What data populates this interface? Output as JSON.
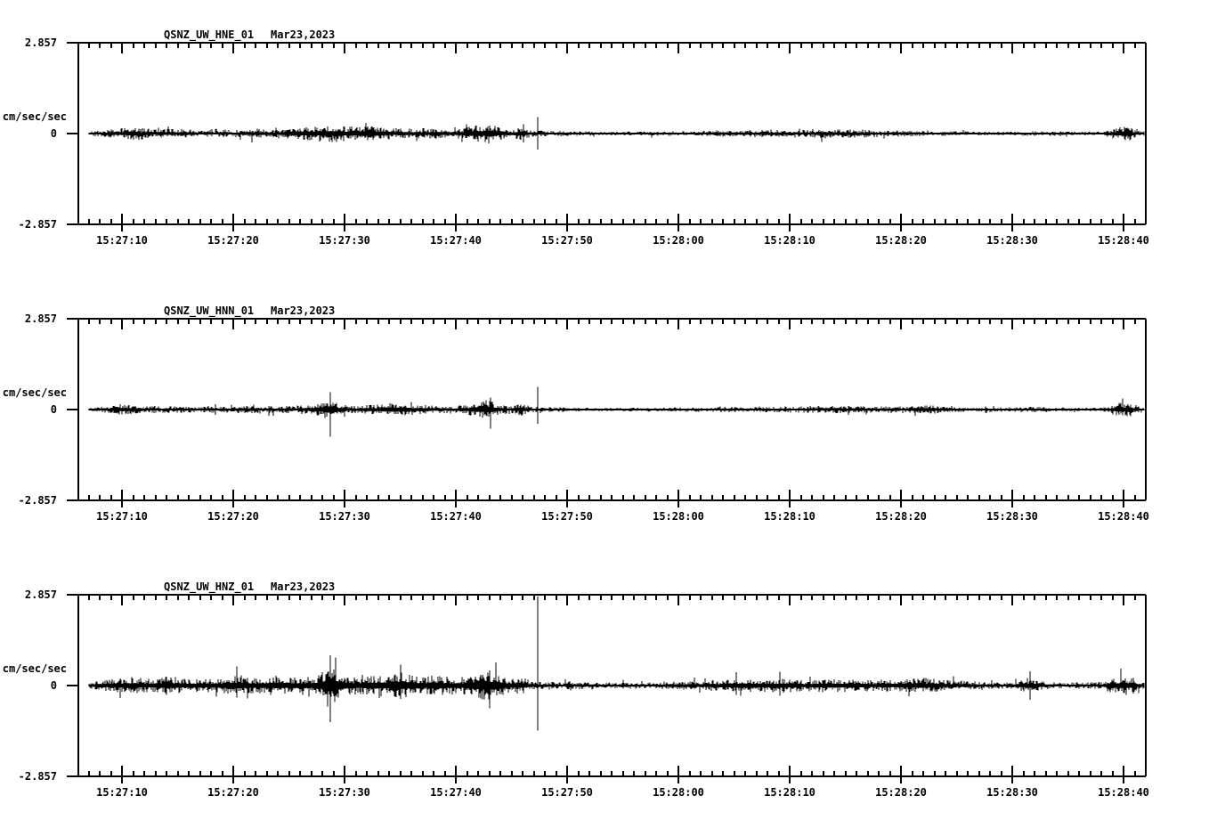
{
  "page": {
    "background": "#ffffff",
    "ink": "#000000"
  },
  "chart_data": [
    {
      "type": "seismogram",
      "station_id": "QSNZ_UW_HNE_01",
      "date": "Mar23,2023",
      "units": "cm/sec/sec",
      "y_axis": {
        "max_label": "2.857",
        "zero_label": "0",
        "min_label": "-2.857",
        "ylim": [
          -2.857,
          2.857
        ]
      },
      "x_ticks": [
        "15:27:10",
        "15:27:20",
        "15:27:30",
        "15:27:40",
        "15:27:50",
        "15:28:00",
        "15:28:10",
        "15:28:20",
        "15:28:30",
        "15:28:40"
      ],
      "time_window": {
        "start": "15:27:06",
        "end": "15:28:42",
        "minor_tick_interval_sec": 1,
        "major_tick_interval_sec": 10
      },
      "t_reference": "seconds after 15:27:00",
      "amplitude_envelope": [
        [
          7,
          0.05
        ],
        [
          8,
          0.1
        ],
        [
          10,
          0.16
        ],
        [
          11,
          0.22
        ],
        [
          12,
          0.18
        ],
        [
          13,
          0.13
        ],
        [
          14,
          0.16
        ],
        [
          15,
          0.13
        ],
        [
          16,
          0.15
        ],
        [
          17,
          0.11
        ],
        [
          18,
          0.1
        ],
        [
          19,
          0.13
        ],
        [
          20,
          0.11
        ],
        [
          21,
          0.14
        ],
        [
          22,
          0.17
        ],
        [
          23,
          0.12
        ],
        [
          24,
          0.14
        ],
        [
          25,
          0.17
        ],
        [
          26,
          0.2
        ],
        [
          27,
          0.22
        ],
        [
          28,
          0.25
        ],
        [
          29,
          0.28
        ],
        [
          30,
          0.24
        ],
        [
          31,
          0.22
        ],
        [
          32,
          0.24
        ],
        [
          33,
          0.2
        ],
        [
          34,
          0.18
        ],
        [
          35,
          0.17
        ],
        [
          36,
          0.15
        ],
        [
          37,
          0.18
        ],
        [
          38,
          0.16
        ],
        [
          39,
          0.14
        ],
        [
          40,
          0.15
        ],
        [
          41,
          0.2
        ],
        [
          42,
          0.28
        ],
        [
          43,
          0.32
        ],
        [
          44,
          0.2
        ],
        [
          45,
          0.13
        ],
        [
          46,
          0.24
        ],
        [
          46.6,
          0.12
        ],
        [
          47,
          0.1
        ],
        [
          48,
          0.1
        ],
        [
          49,
          0.08
        ],
        [
          50,
          0.08
        ],
        [
          52,
          0.07
        ],
        [
          54,
          0.06
        ],
        [
          56,
          0.06
        ],
        [
          58,
          0.07
        ],
        [
          60,
          0.07
        ],
        [
          62,
          0.08
        ],
        [
          64,
          0.1
        ],
        [
          66,
          0.11
        ],
        [
          68,
          0.11
        ],
        [
          70,
          0.13
        ],
        [
          71,
          0.12
        ],
        [
          72,
          0.13
        ],
        [
          73,
          0.15
        ],
        [
          74,
          0.16
        ],
        [
          75,
          0.14
        ],
        [
          76,
          0.13
        ],
        [
          77,
          0.14
        ],
        [
          78,
          0.12
        ],
        [
          79,
          0.12
        ],
        [
          80,
          0.1
        ],
        [
          82,
          0.08
        ],
        [
          84,
          0.07
        ],
        [
          86,
          0.07
        ],
        [
          88,
          0.06
        ],
        [
          90,
          0.06
        ],
        [
          92,
          0.07
        ],
        [
          94,
          0.07
        ],
        [
          96,
          0.06
        ],
        [
          98,
          0.06
        ],
        [
          98.8,
          0.13
        ],
        [
          99.5,
          0.22
        ],
        [
          100.5,
          0.24
        ],
        [
          101.3,
          0.12
        ],
        [
          102,
          0.06
        ]
      ],
      "peak_events": [
        {
          "t": 46.1,
          "max": 0.3,
          "min": -0.28
        },
        {
          "t": 47.35,
          "max": 0.52,
          "min": -0.5
        }
      ]
    },
    {
      "type": "seismogram",
      "station_id": "QSNZ_UW_HNN_01",
      "date": "Mar23,2023",
      "units": "cm/sec/sec",
      "y_axis": {
        "max_label": "2.857",
        "zero_label": "0",
        "min_label": "-2.857",
        "ylim": [
          -2.857,
          2.857
        ]
      },
      "x_ticks": [
        "15:27:10",
        "15:27:20",
        "15:27:30",
        "15:27:40",
        "15:27:50",
        "15:28:00",
        "15:28:10",
        "15:28:20",
        "15:28:30",
        "15:28:40"
      ],
      "time_window": {
        "start": "15:27:06",
        "end": "15:28:42",
        "minor_tick_interval_sec": 1,
        "major_tick_interval_sec": 10
      },
      "t_reference": "seconds after 15:27:00",
      "amplitude_envelope": [
        [
          7,
          0.05
        ],
        [
          8,
          0.09
        ],
        [
          9,
          0.14
        ],
        [
          10,
          0.18
        ],
        [
          11,
          0.14
        ],
        [
          12,
          0.11
        ],
        [
          13,
          0.12
        ],
        [
          14,
          0.1
        ],
        [
          15,
          0.12
        ],
        [
          16,
          0.1
        ],
        [
          17,
          0.09
        ],
        [
          18,
          0.1
        ],
        [
          19,
          0.12
        ],
        [
          20,
          0.1
        ],
        [
          21,
          0.12
        ],
        [
          22,
          0.14
        ],
        [
          23,
          0.12
        ],
        [
          24,
          0.11
        ],
        [
          25,
          0.12
        ],
        [
          26,
          0.14
        ],
        [
          27,
          0.16
        ],
        [
          28,
          0.22
        ],
        [
          28.7,
          0.4
        ],
        [
          29.4,
          0.2
        ],
        [
          30,
          0.14
        ],
        [
          31,
          0.13
        ],
        [
          32,
          0.15
        ],
        [
          33,
          0.18
        ],
        [
          34,
          0.2
        ],
        [
          35,
          0.24
        ],
        [
          36,
          0.18
        ],
        [
          37,
          0.14
        ],
        [
          38,
          0.13
        ],
        [
          39,
          0.12
        ],
        [
          40,
          0.13
        ],
        [
          41,
          0.16
        ],
        [
          42,
          0.24
        ],
        [
          43,
          0.3
        ],
        [
          44,
          0.16
        ],
        [
          45,
          0.12
        ],
        [
          46,
          0.2
        ],
        [
          46.6,
          0.11
        ],
        [
          47,
          0.09
        ],
        [
          48,
          0.09
        ],
        [
          50,
          0.07
        ],
        [
          52,
          0.06
        ],
        [
          54,
          0.06
        ],
        [
          56,
          0.06
        ],
        [
          58,
          0.06
        ],
        [
          60,
          0.07
        ],
        [
          62,
          0.07
        ],
        [
          64,
          0.08
        ],
        [
          66,
          0.08
        ],
        [
          68,
          0.09
        ],
        [
          70,
          0.1
        ],
        [
          72,
          0.11
        ],
        [
          74,
          0.12
        ],
        [
          76,
          0.11
        ],
        [
          78,
          0.1
        ],
        [
          80,
          0.11
        ],
        [
          81,
          0.14
        ],
        [
          82,
          0.17
        ],
        [
          83,
          0.14
        ],
        [
          84,
          0.09
        ],
        [
          86,
          0.07
        ],
        [
          88,
          0.07
        ],
        [
          90,
          0.08
        ],
        [
          92,
          0.09
        ],
        [
          93,
          0.08
        ],
        [
          94,
          0.07
        ],
        [
          96,
          0.06
        ],
        [
          98,
          0.06
        ],
        [
          98.8,
          0.13
        ],
        [
          99.5,
          0.22
        ],
        [
          100.5,
          0.24
        ],
        [
          101.3,
          0.12
        ],
        [
          102,
          0.06
        ]
      ],
      "peak_events": [
        {
          "t": 28.75,
          "max": 0.55,
          "min": -0.85
        },
        {
          "t": 43.1,
          "max": 0.38,
          "min": -0.6
        },
        {
          "t": 47.35,
          "max": 0.72,
          "min": -0.45
        }
      ]
    },
    {
      "type": "seismogram",
      "station_id": "QSNZ_UW_HNZ_01",
      "date": "Mar23,2023",
      "units": "cm/sec/sec",
      "y_axis": {
        "max_label": "2.857",
        "zero_label": "0",
        "min_label": "-2.857",
        "ylim": [
          -2.857,
          2.857
        ]
      },
      "x_ticks": [
        "15:27:10",
        "15:27:20",
        "15:27:30",
        "15:27:40",
        "15:27:50",
        "15:28:00",
        "15:28:10",
        "15:28:20",
        "15:28:30",
        "15:28:40"
      ],
      "time_window": {
        "start": "15:27:06",
        "end": "15:28:42",
        "minor_tick_interval_sec": 1,
        "major_tick_interval_sec": 10
      },
      "t_reference": "seconds after 15:27:00",
      "amplitude_envelope": [
        [
          7,
          0.08
        ],
        [
          8,
          0.16
        ],
        [
          9,
          0.2
        ],
        [
          10,
          0.24
        ],
        [
          11,
          0.28
        ],
        [
          12,
          0.22
        ],
        [
          13,
          0.2
        ],
        [
          14,
          0.32
        ],
        [
          15,
          0.26
        ],
        [
          16,
          0.22
        ],
        [
          17,
          0.2
        ],
        [
          18,
          0.22
        ],
        [
          19,
          0.25
        ],
        [
          20,
          0.36
        ],
        [
          21,
          0.28
        ],
        [
          22,
          0.25
        ],
        [
          23,
          0.28
        ],
        [
          24,
          0.32
        ],
        [
          25,
          0.28
        ],
        [
          26,
          0.25
        ],
        [
          27,
          0.28
        ],
        [
          28,
          0.42
        ],
        [
          28.7,
          0.8
        ],
        [
          29.4,
          0.45
        ],
        [
          30,
          0.34
        ],
        [
          31,
          0.28
        ],
        [
          32,
          0.3
        ],
        [
          33,
          0.36
        ],
        [
          34,
          0.34
        ],
        [
          35,
          0.42
        ],
        [
          36,
          0.34
        ],
        [
          37,
          0.28
        ],
        [
          38,
          0.32
        ],
        [
          39,
          0.28
        ],
        [
          40,
          0.28
        ],
        [
          41,
          0.32
        ],
        [
          42,
          0.44
        ],
        [
          43,
          0.5
        ],
        [
          44,
          0.34
        ],
        [
          45,
          0.22
        ],
        [
          46,
          0.28
        ],
        [
          46.6,
          0.16
        ],
        [
          47,
          0.12
        ],
        [
          48,
          0.14
        ],
        [
          49,
          0.11
        ],
        [
          50,
          0.11
        ],
        [
          51,
          0.13
        ],
        [
          52,
          0.1
        ],
        [
          54,
          0.1
        ],
        [
          56,
          0.1
        ],
        [
          58,
          0.12
        ],
        [
          60,
          0.13
        ],
        [
          62,
          0.15
        ],
        [
          63,
          0.17
        ],
        [
          64,
          0.19
        ],
        [
          65,
          0.22
        ],
        [
          66,
          0.19
        ],
        [
          67,
          0.2
        ],
        [
          68,
          0.22
        ],
        [
          69,
          0.24
        ],
        [
          70,
          0.22
        ],
        [
          71,
          0.19
        ],
        [
          72,
          0.19
        ],
        [
          73,
          0.21
        ],
        [
          74,
          0.22
        ],
        [
          75,
          0.2
        ],
        [
          76,
          0.21
        ],
        [
          77,
          0.19
        ],
        [
          78,
          0.18
        ],
        [
          79,
          0.19
        ],
        [
          80,
          0.21
        ],
        [
          81,
          0.23
        ],
        [
          82,
          0.25
        ],
        [
          83,
          0.22
        ],
        [
          84,
          0.18
        ],
        [
          85,
          0.16
        ],
        [
          86,
          0.14
        ],
        [
          88,
          0.12
        ],
        [
          90,
          0.1
        ],
        [
          91,
          0.22
        ],
        [
          91.7,
          0.25
        ],
        [
          92.4,
          0.18
        ],
        [
          93,
          0.12
        ],
        [
          94,
          0.1
        ],
        [
          96,
          0.1
        ],
        [
          98,
          0.12
        ],
        [
          99,
          0.24
        ],
        [
          100,
          0.32
        ],
        [
          100.8,
          0.28
        ],
        [
          101.5,
          0.12
        ],
        [
          102,
          0.08
        ]
      ],
      "peak_events": [
        {
          "t": 20.3,
          "max": 0.6,
          "min": -0.38
        },
        {
          "t": 28.7,
          "max": 0.95,
          "min": -1.15
        },
        {
          "t": 35.0,
          "max": 0.66,
          "min": -0.42
        },
        {
          "t": 43.0,
          "max": 0.48,
          "min": -0.72
        },
        {
          "t": 47.35,
          "max": 2.8,
          "min": -1.42
        },
        {
          "t": 65.2,
          "max": 0.42,
          "min": -0.3
        },
        {
          "t": 69.1,
          "max": 0.44,
          "min": -0.32
        },
        {
          "t": 91.6,
          "max": 0.45,
          "min": -0.45
        }
      ]
    }
  ]
}
